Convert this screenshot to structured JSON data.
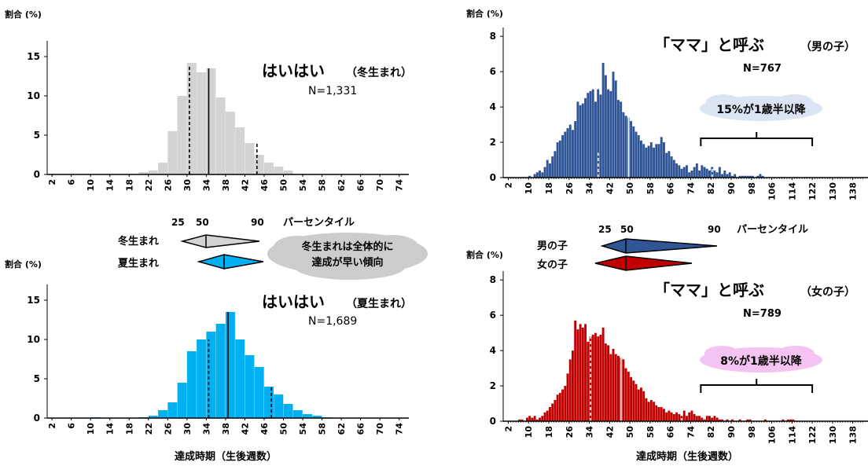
{
  "colors": {
    "winter": "#d3d3d3",
    "summer": "#00b0f0",
    "boy": "#2f5597",
    "girl": "#c00000",
    "cloud_gray": "#cccccc",
    "cloud_blue": "#dbe4f3",
    "cloud_pink": "#f4c3f2",
    "axis": "#000000"
  },
  "common": {
    "y_unit_label": "割合 (%)",
    "x_axis_label": "達成時期（生後週数）",
    "percentile_label": "パーセンタイル"
  },
  "middle_left": {
    "pct_ticks": [
      "25",
      "50",
      "90"
    ],
    "row1_label": "冬生まれ",
    "row2_label": "夏生まれ",
    "cloud_text_line1": "冬生まれは全体的に",
    "cloud_text_line2": "達成が早い傾向"
  },
  "middle_right": {
    "pct_ticks": [
      "25",
      "50",
      "90"
    ],
    "row1_label": "男の子",
    "row2_label": "女の子"
  },
  "chart_data": [
    {
      "id": "crawl-winter",
      "type": "bar",
      "title": "はいはい",
      "title_note": "（冬生まれ）",
      "subtitle": "N=1,331",
      "ylabel": "割合 (%)",
      "xlabel": "",
      "ylim": [
        0,
        17
      ],
      "yticks": [
        0,
        5,
        10,
        15
      ],
      "x_ticks": [
        "2",
        "6",
        "10",
        "14",
        "18",
        "22",
        "26",
        "30",
        "34",
        "38",
        "42",
        "46",
        "50",
        "54",
        "58",
        "62",
        "66",
        "70",
        "74"
      ],
      "x_start": 2,
      "bin_width": 2,
      "values": [
        0,
        0,
        0,
        0,
        0,
        0,
        0,
        0,
        0,
        0.3,
        0.5,
        1.5,
        5.5,
        10,
        14.2,
        13,
        13.5,
        9.8,
        8,
        6,
        4,
        2.5,
        1.5,
        1,
        0.5,
        0,
        0,
        0,
        0,
        0,
        0,
        0,
        0,
        0,
        0,
        0,
        0
      ],
      "markers": [
        {
          "x": 30.5,
          "y": 14,
          "style": "dashed"
        },
        {
          "x": 34.5,
          "y": 13.5,
          "style": "solid"
        },
        {
          "x": 44.5,
          "y": 4,
          "style": "dashed"
        }
      ]
    },
    {
      "id": "crawl-summer",
      "type": "bar",
      "title": "はいはい",
      "title_note": "（夏生まれ）",
      "subtitle": "N=1,689",
      "ylabel": "割合 (%)",
      "xlabel": "達成時期（生後週数）",
      "ylim": [
        0,
        17
      ],
      "yticks": [
        0,
        5,
        10,
        15
      ],
      "x_ticks": [
        "2",
        "6",
        "10",
        "14",
        "18",
        "22",
        "26",
        "30",
        "34",
        "38",
        "42",
        "46",
        "50",
        "54",
        "58",
        "62",
        "66",
        "70",
        "74"
      ],
      "x_start": 2,
      "bin_width": 2,
      "values": [
        0,
        0,
        0,
        0,
        0.1,
        0,
        0,
        0,
        0,
        0.1,
        0.3,
        1,
        2,
        4.5,
        8.5,
        10,
        11,
        12,
        13.5,
        10,
        8,
        6.5,
        4,
        3,
        1.8,
        1,
        0.5,
        0.3,
        0.1,
        0,
        0,
        0,
        0,
        0,
        0,
        0,
        0
      ],
      "markers": [
        {
          "x": 34.5,
          "y": 10,
          "style": "dashed"
        },
        {
          "x": 38.5,
          "y": 13.5,
          "style": "solid"
        },
        {
          "x": 47.5,
          "y": 4,
          "style": "dashed"
        }
      ]
    },
    {
      "id": "mama-boys",
      "type": "bar",
      "title": "「ママ」と呼ぶ",
      "title_note": "（男の子）",
      "subtitle": "N=767",
      "ylabel": "割合 (%)",
      "xlabel": "",
      "ylim": [
        0,
        8.5
      ],
      "yticks": [
        0,
        2,
        4,
        6,
        8
      ],
      "x_ticks": [
        "2",
        "10",
        "18",
        "26",
        "34",
        "42",
        "50",
        "58",
        "66",
        "74",
        "82",
        "90",
        "98",
        "106",
        "114",
        "122",
        "130",
        "138"
      ],
      "x_start": 2,
      "bin_width": 1,
      "values": [
        0,
        0,
        0,
        0,
        0,
        0,
        0,
        0,
        0.1,
        0,
        0.2,
        0.3,
        0.4,
        0.3,
        0.6,
        1,
        0.8,
        1.2,
        1.5,
        2,
        2.1,
        2.4,
        2.6,
        2.8,
        3,
        2.7,
        3.2,
        4.3,
        4.1,
        4.2,
        4.5,
        4.8,
        4.9,
        5,
        4.3,
        5,
        4.7,
        6.5,
        5.8,
        5,
        4.9,
        6,
        5.5,
        4.4,
        4.3,
        3.7,
        3.5,
        3.4,
        3.2,
        2.9,
        2.6,
        2.4,
        2.1,
        1.9,
        1.7,
        1.8,
        2,
        1.7,
        1.9,
        1.9,
        2.3,
        2,
        1.4,
        1.5,
        1.2,
        1,
        0.8,
        0.7,
        0.5,
        0.6,
        0.7,
        0.3,
        0.4,
        0.6,
        0.8,
        0.4,
        0.7,
        0.6,
        0.5,
        0.4,
        0.6,
        0.4,
        0.3,
        0.6,
        0.2,
        0.4,
        0.2,
        0.3,
        0.1,
        0.2,
        0,
        0.1,
        0.1,
        0.1,
        0.1,
        0.1,
        0.1,
        0,
        0.1,
        0.2,
        0.1,
        0,
        0,
        0,
        0,
        0,
        0,
        0,
        0,
        0,
        0,
        0,
        0,
        0,
        0,
        0
      ],
      "markers": [
        {
          "x": 37.5,
          "y": 1.4,
          "style": "dashed"
        },
        {
          "x": 49.5,
          "y": 5.8,
          "style": "solid"
        },
        {
          "x": 82.5,
          "y": 0.6,
          "style": "dashed"
        }
      ],
      "callout": "15%が1歳半以降",
      "callout_range": [
        78,
        122
      ]
    },
    {
      "id": "mama-girls",
      "type": "bar",
      "title": "「ママ」と呼ぶ",
      "title_note": "（女の子）",
      "subtitle": "N=789",
      "ylabel": "割合 (%)",
      "xlabel": "達成時期（生後週数）",
      "ylim": [
        0,
        8.5
      ],
      "yticks": [
        0,
        2,
        4,
        6,
        8
      ],
      "x_ticks": [
        "2",
        "10",
        "18",
        "26",
        "34",
        "42",
        "50",
        "58",
        "66",
        "74",
        "82",
        "90",
        "98",
        "106",
        "114",
        "122",
        "130",
        "138"
      ],
      "x_start": 2,
      "bin_width": 1,
      "values": [
        0,
        0,
        0,
        0,
        0.1,
        0.1,
        0,
        0.2,
        0.3,
        0.2,
        0.3,
        0.1,
        0.2,
        0.3,
        0.5,
        0.6,
        0.8,
        1,
        1.2,
        1.5,
        1.6,
        1.8,
        2,
        2.7,
        3.5,
        4,
        5.7,
        5.2,
        5.5,
        5.3,
        5.5,
        4.5,
        4.8,
        4.9,
        5,
        4.8,
        4.9,
        5.3,
        4.4,
        4.3,
        3.8,
        4.1,
        3.8,
        3.7,
        3.6,
        3.5,
        3,
        2.8,
        2.5,
        2.3,
        2.1,
        1.8,
        1.9,
        1.7,
        1.3,
        1.1,
        1.2,
        1.1,
        0.9,
        0.8,
        0.8,
        0.7,
        0.5,
        0.6,
        0.5,
        0.4,
        0.5,
        0.4,
        0.3,
        0.6,
        0.3,
        0.5,
        0.6,
        0.4,
        0.3,
        0.3,
        0.2,
        0.1,
        0.3,
        0.3,
        0.2,
        0.3,
        0.2,
        0.1,
        0.1,
        0,
        0.1,
        0,
        0.1,
        0,
        0,
        0.1,
        0,
        0,
        0.1,
        0.1,
        0,
        0,
        0,
        0,
        0,
        0.1,
        0,
        0,
        0,
        0,
        0,
        0,
        0.1,
        0,
        0.1,
        0.1,
        0.1,
        0
      ],
      "markers": [
        {
          "x": 34.5,
          "y": 5.3,
          "style": "dashed"
        },
        {
          "x": 46.5,
          "y": 5.3,
          "style": "solid"
        },
        {
          "x": 70.5,
          "y": 0.6,
          "style": "dashed"
        }
      ],
      "callout": "8%が1歳半以降",
      "callout_range": [
        78,
        122
      ]
    }
  ]
}
